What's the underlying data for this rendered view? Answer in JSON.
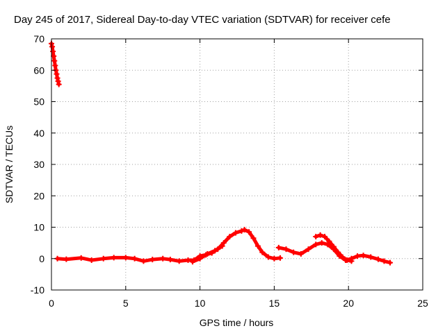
{
  "chart_data": {
    "type": "scatter",
    "title": "Day 245 of 2017, Sidereal Day-to-day VTEC variation (SDTVAR) for receiver cefe",
    "xlabel": "GPS time / hours",
    "ylabel": "SDTVAR / TECUs",
    "xlim": [
      0,
      25
    ],
    "ylim": [
      -10,
      70
    ],
    "xticks": [
      0,
      5,
      10,
      15,
      20,
      25
    ],
    "yticks": [
      -10,
      0,
      10,
      20,
      30,
      40,
      50,
      60,
      70
    ],
    "grid": true,
    "marker": "plus",
    "color": "#ff0000",
    "series": [
      {
        "name": "segment-1",
        "x": [
          0.0,
          0.05,
          0.1,
          0.15,
          0.2,
          0.25,
          0.3,
          0.35,
          0.4,
          0.45,
          0.5
        ],
        "y": [
          68.5,
          67.5,
          66.0,
          64.5,
          63.0,
          61.5,
          60.0,
          58.8,
          57.5,
          56.5,
          55.5
        ]
      },
      {
        "name": "segment-2",
        "x": [
          0.4,
          1.0,
          2.0,
          2.7,
          3.5,
          4.2,
          5.0,
          5.6,
          6.2,
          6.8,
          7.5,
          8.0,
          8.6,
          9.2,
          9.6,
          10.0,
          10.4,
          10.8,
          11.2,
          11.6,
          12.0,
          12.4,
          12.8,
          13.0,
          13.3,
          13.6,
          13.9,
          14.2,
          14.6,
          15.0,
          15.4
        ],
        "y": [
          0.0,
          -0.2,
          0.2,
          -0.5,
          0.0,
          0.3,
          0.3,
          0.0,
          -0.8,
          -0.3,
          0.0,
          -0.3,
          -0.8,
          -0.5,
          -0.5,
          0.8,
          1.2,
          1.8,
          3.0,
          5.0,
          7.0,
          8.2,
          8.8,
          9.2,
          8.5,
          6.5,
          4.0,
          2.0,
          0.5,
          0.0,
          0.2
        ]
      },
      {
        "name": "segment-3",
        "x": [
          15.3,
          15.8,
          16.3,
          16.8,
          17.3,
          17.8,
          18.2,
          18.6,
          19.0,
          19.4,
          19.8,
          20.2,
          20.6,
          21.0,
          21.5,
          22.0,
          22.4,
          22.8
        ],
        "y": [
          3.5,
          3.0,
          2.0,
          1.5,
          3.0,
          4.5,
          5.0,
          4.5,
          3.0,
          0.8,
          -0.5,
          0.0,
          0.8,
          1.0,
          0.5,
          -0.2,
          -0.8,
          -1.3
        ]
      },
      {
        "name": "segment-4",
        "x": [
          17.8,
          18.1,
          18.4,
          18.7,
          19.0,
          19.3,
          19.6,
          19.9,
          20.2
        ],
        "y": [
          7.0,
          7.5,
          7.0,
          5.5,
          3.8,
          2.0,
          0.5,
          -0.5,
          -0.8
        ]
      },
      {
        "name": "segment-5",
        "x": [
          9.5,
          10.0,
          10.5,
          11.0,
          11.5
        ],
        "y": [
          -1.0,
          0.0,
          1.5,
          2.5,
          4.0
        ]
      }
    ]
  }
}
